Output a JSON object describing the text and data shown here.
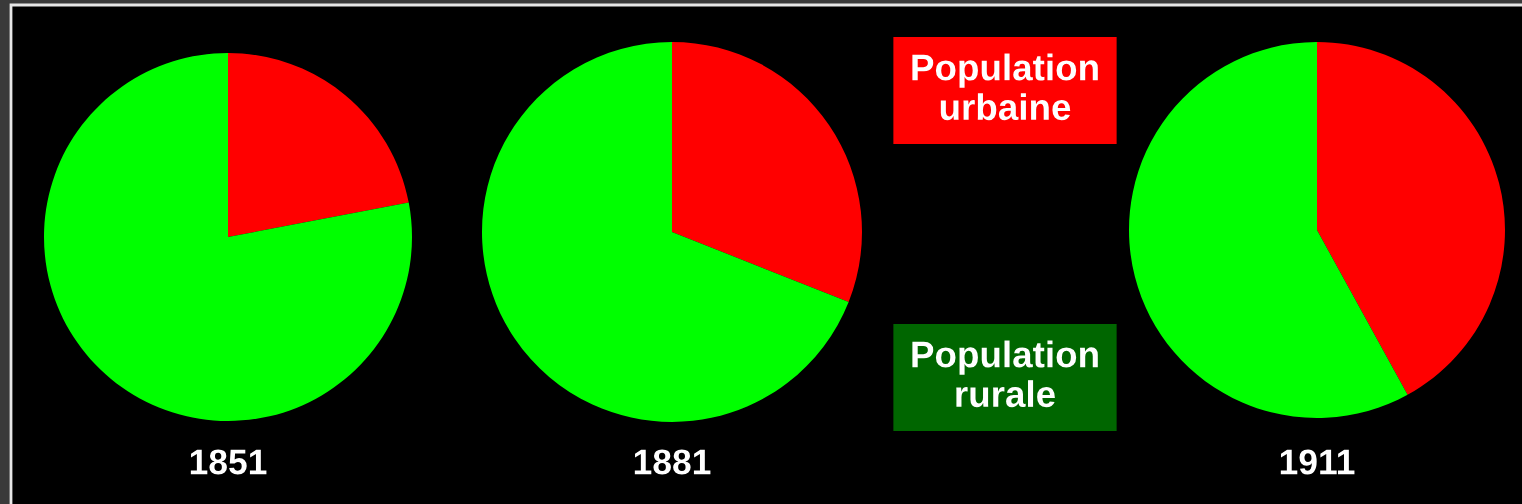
{
  "chart_data": [
    {
      "type": "pie",
      "title": "1851",
      "categories": [
        null,
        null
      ],
      "values": [
        22,
        78
      ],
      "colors": [
        "#ff0000",
        "#00ff00"
      ]
    },
    {
      "type": "pie",
      "title": "1881",
      "categories": [
        "Population urbaine",
        "Population rurale"
      ],
      "values": [
        31,
        69
      ],
      "colors": [
        "#ff0000",
        "#00ff00"
      ]
    },
    {
      "type": "pie",
      "title": "1911",
      "categories": [
        null,
        null
      ],
      "values": [
        42,
        58
      ],
      "colors": [
        "#ff0000",
        "#00ff00"
      ]
    }
  ]
}
